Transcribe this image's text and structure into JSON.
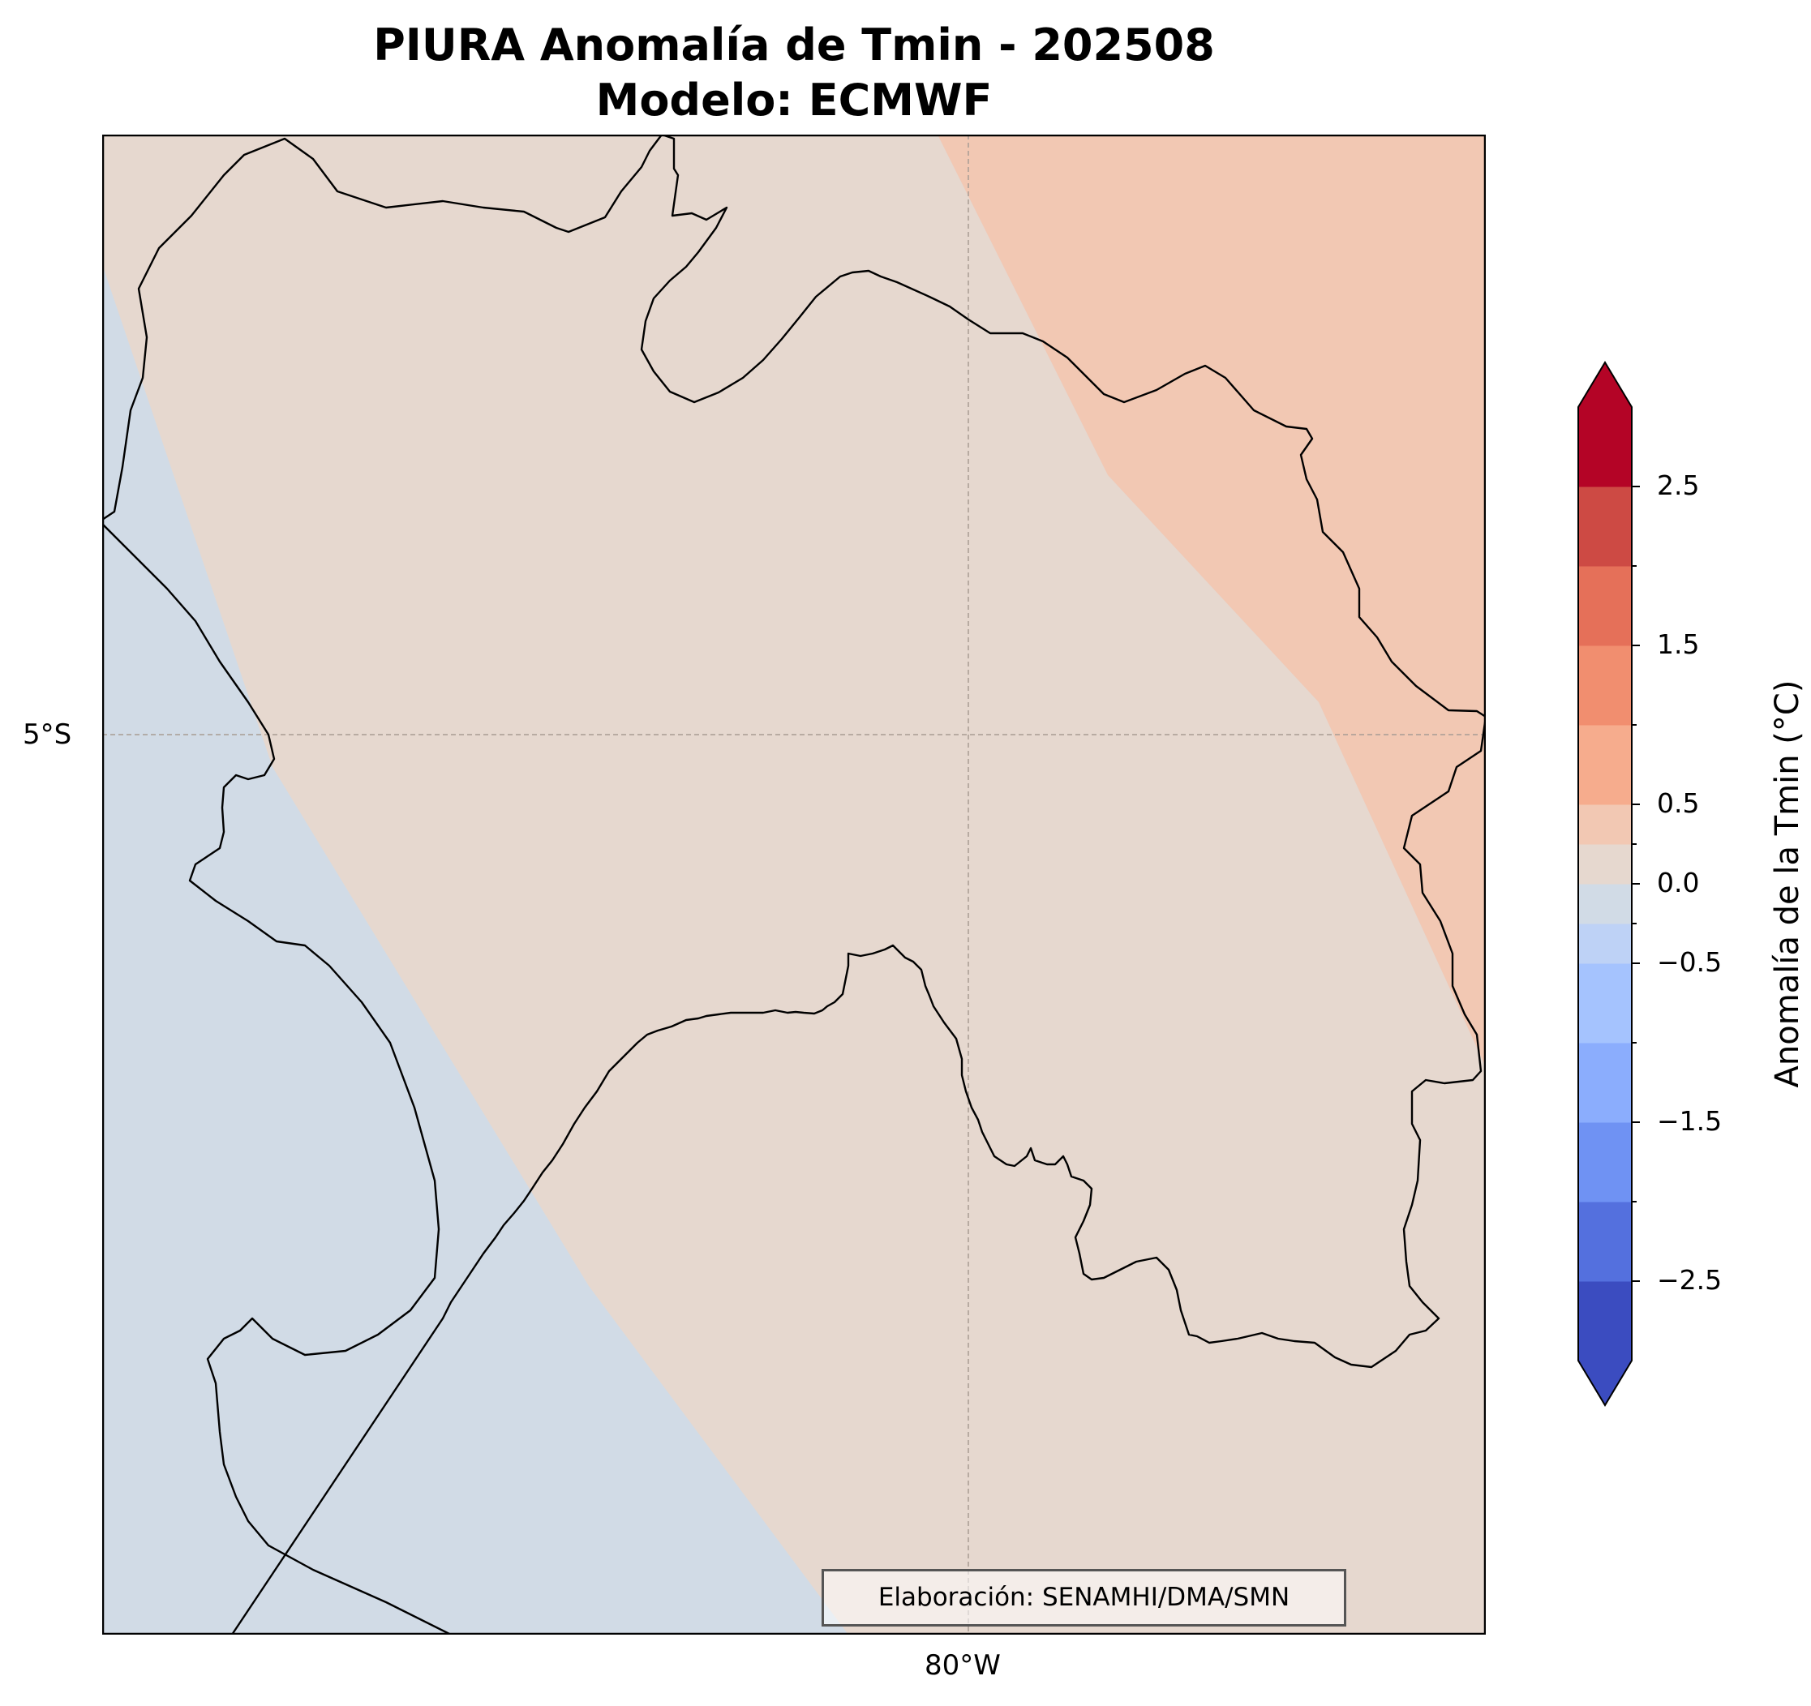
{
  "title": {
    "line1": "PIURA Anomalía de Tmin - 202508",
    "line2": "Modelo: ECMWF"
  },
  "map": {
    "lat_tick": "5°S",
    "lon_tick": "80°W",
    "credit": "Elaboración: SENAMHI/DMA/SMN",
    "fill_colors": {
      "negative": "#d1dbe6",
      "neutral": "#e6d8cf",
      "positive": "#f2c8b3"
    },
    "outline_color": "#000000",
    "gridline_color": "#a89c94"
  },
  "colorbar": {
    "label": "Anomalía de la Tmin (°C)",
    "tick_labels": [
      "2.5",
      "1.5",
      "0.5",
      "0.0",
      "−0.5",
      "−1.5",
      "−2.5"
    ],
    "levels": [
      -3.0,
      -2.5,
      -2.0,
      -1.5,
      -1.0,
      -0.5,
      -0.25,
      0.0,
      0.25,
      0.5,
      1.0,
      1.5,
      2.0,
      2.5,
      3.0
    ],
    "colors": [
      "#3b4cc0",
      "#5470de",
      "#6f92f3",
      "#8badfd",
      "#a5c3fe",
      "#bed2f6",
      "#d1dbe6",
      "#e6d8cf",
      "#f2c8b3",
      "#f6ac8d",
      "#f18e6f",
      "#e57059",
      "#cd4a44",
      "#b40426"
    ],
    "extend": "both"
  }
}
